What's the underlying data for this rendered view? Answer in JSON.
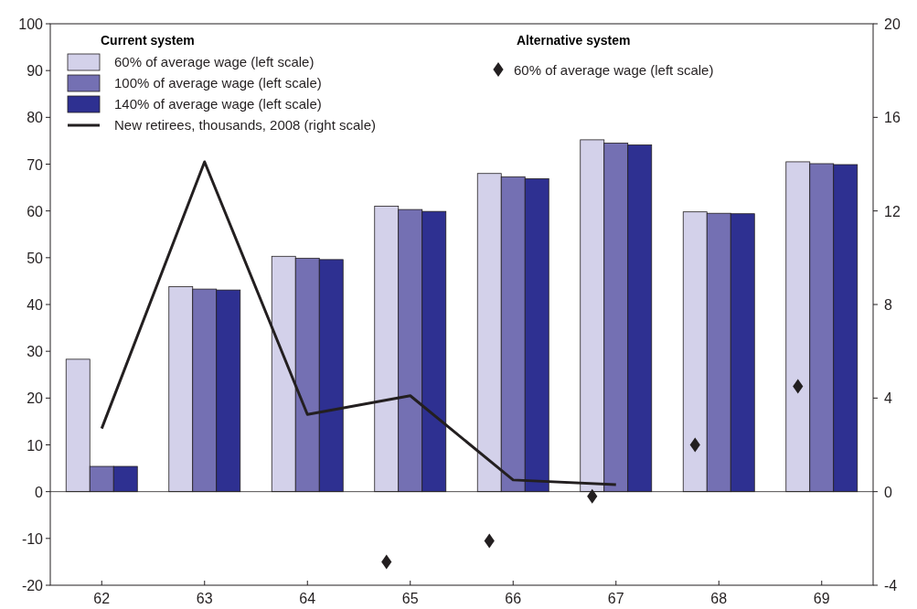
{
  "chart_data": {
    "type": "bar",
    "categories": [
      "62",
      "63",
      "64",
      "65",
      "66",
      "67",
      "68",
      "69"
    ],
    "series": [
      {
        "name": "60% of average wage (left scale)",
        "color": "#d3d1ea",
        "values": [
          28.3,
          43.8,
          50.3,
          61,
          68,
          75.2,
          59.8,
          70.5
        ]
      },
      {
        "name": "100% of average wage (left scale)",
        "color": "#7470b3",
        "values": [
          5.4,
          43.3,
          49.9,
          60.3,
          67.3,
          74.5,
          59.5,
          70.1
        ]
      },
      {
        "name": "140% of average wage (left scale)",
        "color": "#2e3091",
        "values": [
          5.4,
          43.1,
          49.6,
          59.9,
          66.9,
          74.1,
          59.4,
          69.9
        ]
      },
      {
        "name": "New retirees, thousands, 2008 (right scale)",
        "type": "line",
        "axis": "y2",
        "color": "#231f20",
        "values": [
          2.7,
          14.1,
          3.3,
          4.1,
          0.5,
          0.3,
          null,
          null
        ]
      },
      {
        "name": "60% of average wage (left scale)",
        "type": "scatter",
        "marker": "diamond",
        "color": "#231f20",
        "x": [
          "65",
          "66",
          "67",
          "68",
          "69"
        ],
        "values": [
          -15,
          -10.5,
          -1,
          10,
          22.5
        ]
      }
    ],
    "ylim": [
      -20,
      100
    ],
    "yticks": [
      -20,
      -10,
      0,
      10,
      20,
      30,
      40,
      50,
      60,
      70,
      80,
      90,
      100
    ],
    "y2lim": [
      -4,
      20
    ],
    "y2ticks": [
      -4,
      0,
      4,
      8,
      12,
      16,
      20
    ],
    "annotations": [
      "Current system",
      "Alternative system"
    ],
    "ref_lines": [
      {
        "axis": "y",
        "value": 0,
        "color": "#231f20"
      }
    ],
    "legend": "top"
  }
}
